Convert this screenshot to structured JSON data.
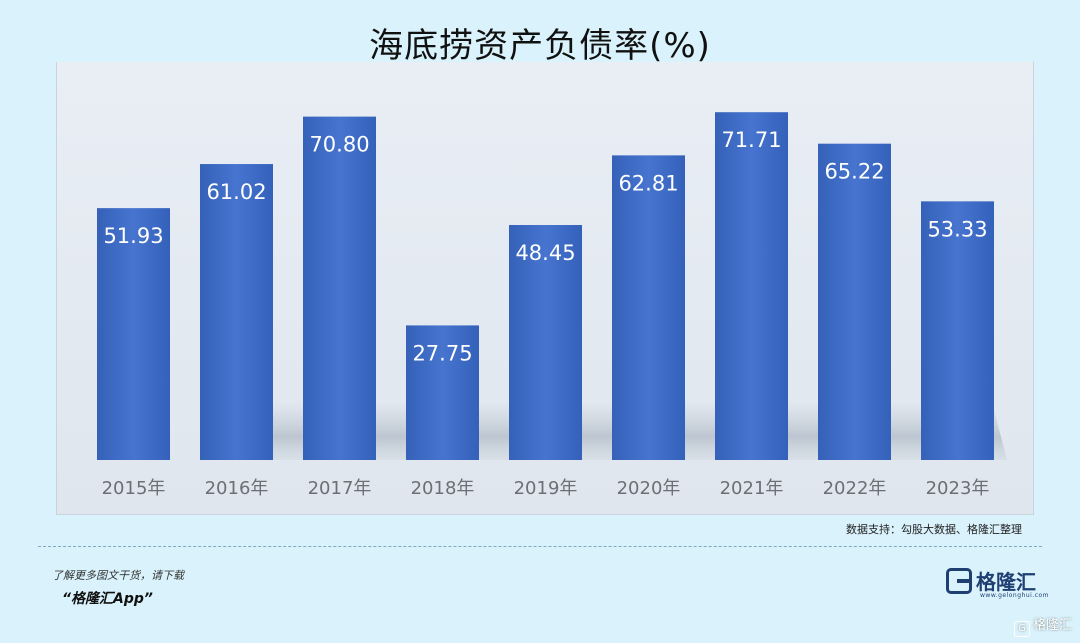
{
  "chart_data": {
    "type": "bar",
    "title": "海底捞资产负债率(%)",
    "categories": [
      "2015年",
      "2016年",
      "2017年",
      "2018年",
      "2019年",
      "2020年",
      "2021年",
      "2022年",
      "2023年"
    ],
    "values": [
      51.93,
      61.02,
      70.8,
      27.75,
      48.45,
      62.81,
      71.71,
      65.22,
      53.33
    ],
    "data_labels": [
      "51.93",
      "61.02",
      "70.80",
      "27.75",
      "48.45",
      "62.81",
      "71.71",
      "65.22",
      "53.33"
    ],
    "xlabel": "",
    "ylabel": "",
    "ylim": [
      0,
      80
    ],
    "grid": false,
    "legend": "none",
    "bar_color": "#3f6cc6",
    "label_color": "#ffffff"
  },
  "source": "数据支持：勾股大数据、格隆汇整理",
  "promo": {
    "line1": "了解更多图文干货，请下载",
    "line2": "“格隆汇App”"
  },
  "brand": {
    "name": "格隆汇",
    "sub": "www.gelonghui.com",
    "icon": "gelonghui-logo-icon"
  },
  "corner_badge": "格隆汇"
}
